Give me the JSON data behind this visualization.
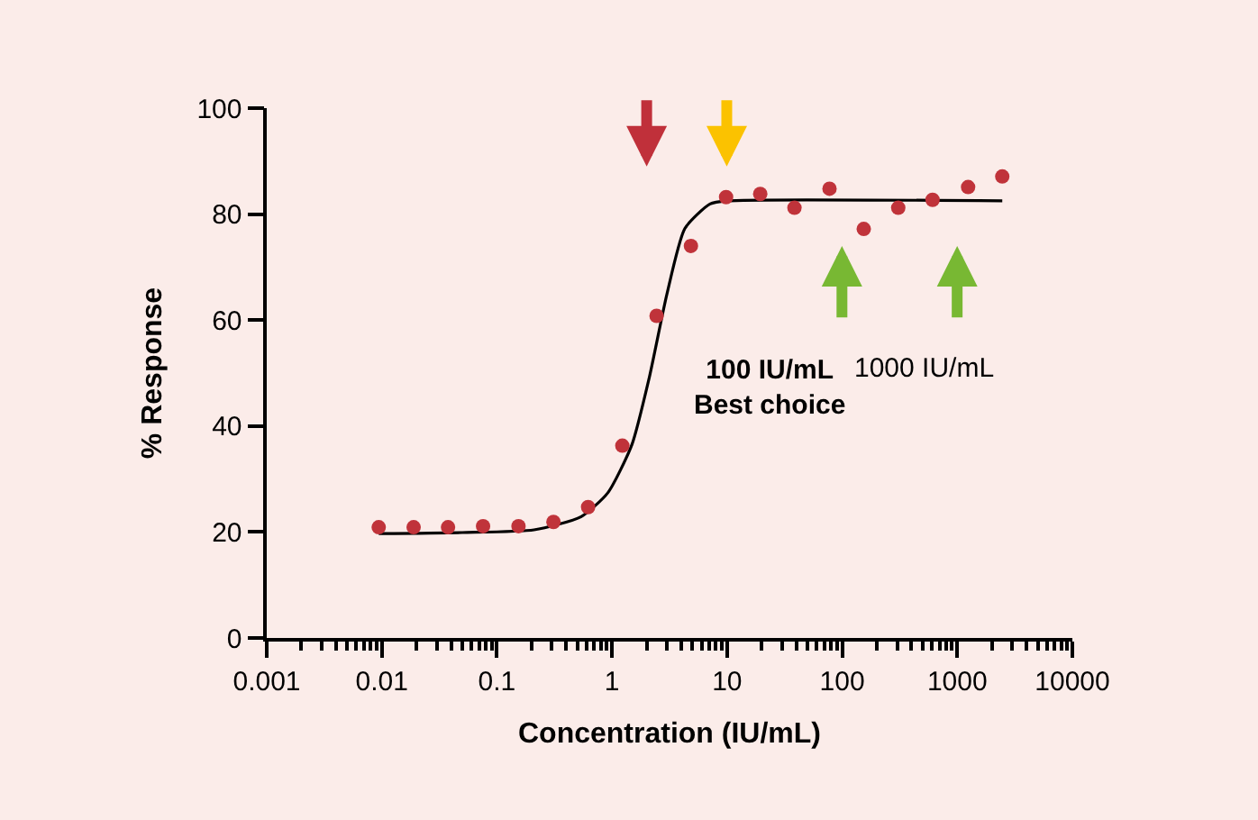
{
  "chart_data": {
    "type": "scatter",
    "xlabel": "Concentration (IU/mL)",
    "ylabel": "% Response",
    "log": "x",
    "grid": false,
    "xlim": [
      0.001,
      10000
    ],
    "xticks": [
      0.001,
      0.01,
      0.1,
      1,
      10,
      100,
      1000,
      10000
    ],
    "ylim": [
      0,
      100
    ],
    "yticks": [
      0,
      20,
      40,
      60,
      80,
      100
    ],
    "series": [
      {
        "type": "line",
        "color": "#000000",
        "marker": "none",
        "line_style": "solid",
        "x": [
          0.0094,
          0.05,
          0.21,
          0.54,
          0.92,
          1.49,
          2.1,
          3.0,
          4.3,
          7.1,
          10,
          2460
        ],
        "values": [
          19.7,
          19.9,
          20.4,
          22.9,
          27.4,
          36.5,
          49,
          64.9,
          77.3,
          81.9,
          82.5,
          82.5
        ]
      },
      {
        "color": "#c0333a",
        "marker": "circle",
        "x": [
          0.0094,
          0.0189,
          0.0376,
          0.0758,
          0.154,
          0.31,
          0.62,
          1.23,
          2.44,
          4.85,
          9.8,
          19.4,
          38.5,
          77.6,
          154,
          307,
          610,
          1242,
          2460
        ],
        "values": [
          20.9,
          20.9,
          20.9,
          21.1,
          21.1,
          21.9,
          24.7,
          36.3,
          60.8,
          74.0,
          83.2,
          83.8,
          81.2,
          84.8,
          77.2,
          81.2,
          82.7,
          85.1,
          87.1
        ]
      }
    ],
    "annotations": [
      "100 IU/mL\nBest choice",
      "1000 IU/mL"
    ]
  }
}
